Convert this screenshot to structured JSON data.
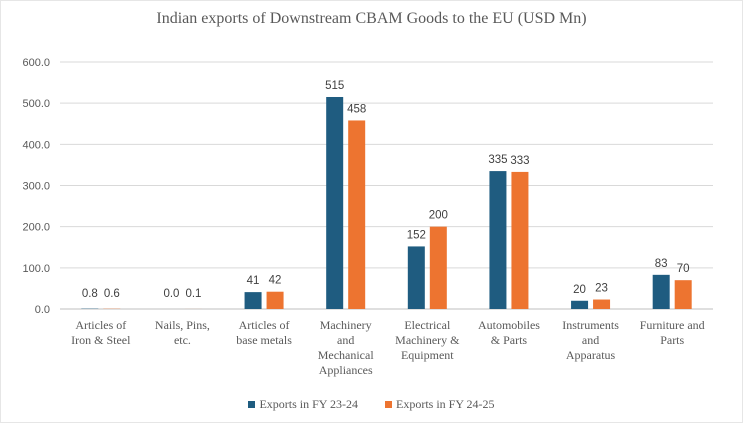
{
  "chart_data": {
    "type": "bar",
    "title": "Indian exports of Downstream CBAM Goods to the EU (USD Mn)",
    "xlabel": "",
    "ylabel": "",
    "ylim": [
      0,
      600
    ],
    "yticks": [
      0,
      100,
      200,
      300,
      400,
      500,
      600
    ],
    "ytick_labels": [
      "0.0",
      "100.0",
      "200.0",
      "300.0",
      "400.0",
      "500.0",
      "600.0"
    ],
    "grid": true,
    "legend_position": "bottom",
    "categories": [
      [
        "Articles of",
        "Iron & Steel"
      ],
      [
        "Nails, Pins,",
        "etc."
      ],
      [
        "Articles of",
        "base metals"
      ],
      [
        "Machinery",
        "and",
        "Mechanical",
        "Appliances"
      ],
      [
        "Electrical",
        "Machinery &",
        "Equipment"
      ],
      [
        "Automobiles",
        "& Parts"
      ],
      [
        "Instruments",
        "and",
        "Apparatus"
      ],
      [
        "Furniture and",
        "Parts"
      ]
    ],
    "series": [
      {
        "name": "Exports in FY 23-24",
        "color": "#1f5c80",
        "values": [
          0.8,
          0.0,
          41,
          515,
          152,
          335,
          20,
          83
        ],
        "labels": [
          "0.8",
          "0.0",
          "41",
          "515",
          "152",
          "335",
          "20",
          "83"
        ]
      },
      {
        "name": "Exports in FY 24-25",
        "color": "#ed7430",
        "values": [
          0.6,
          0.1,
          42,
          458,
          200,
          333,
          23,
          70
        ],
        "labels": [
          "0.6",
          "0.1",
          "42",
          "458",
          "200",
          "333",
          "23",
          "70"
        ]
      }
    ]
  }
}
